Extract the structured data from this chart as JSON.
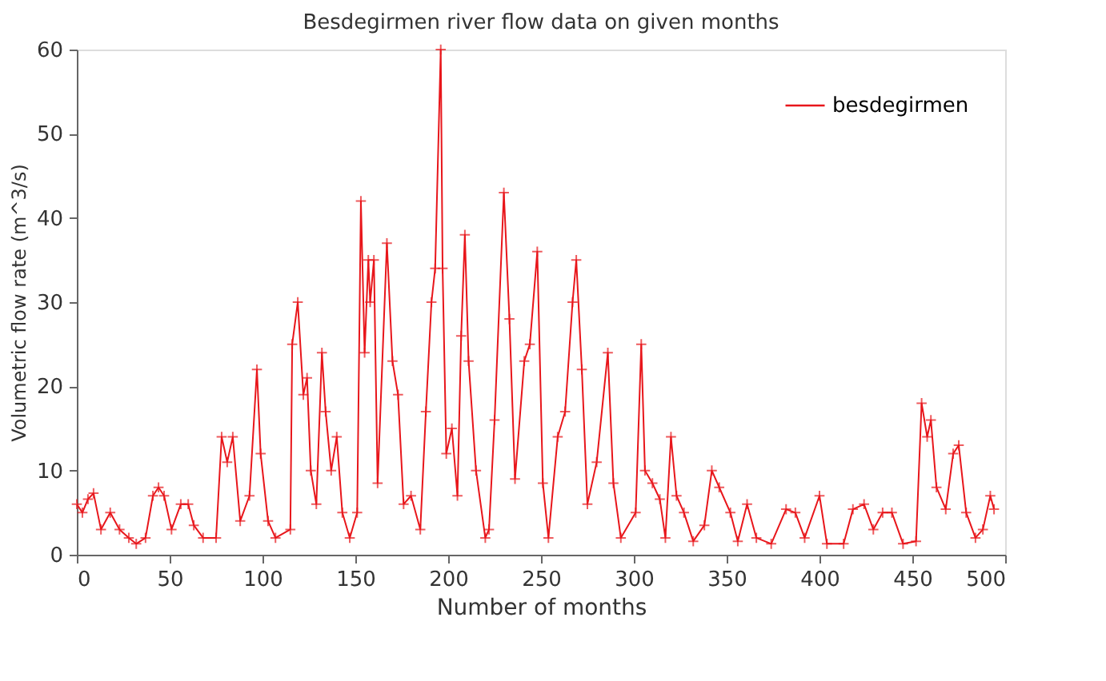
{
  "chart_data": {
    "type": "line",
    "title": "Besdegirmen river flow data on given months",
    "xlabel": "Number of months",
    "ylabel": "Volumetric flow rate (m^3/s)",
    "xlim": [
      0,
      500
    ],
    "xticks": [
      0,
      50,
      100,
      150,
      200,
      250,
      300,
      350,
      400,
      450,
      500
    ],
    "ylim": [
      0,
      60
    ],
    "yticks": [
      0,
      10,
      20,
      30,
      40,
      50,
      60
    ],
    "grid": false,
    "legend": "top right",
    "marker": "cross",
    "line_style": "solid",
    "series": [
      {
        "name": "besdegirmen",
        "color": "#e8161b",
        "x": [
          0,
          3,
          6,
          9,
          13,
          18,
          23,
          28,
          32,
          37,
          41,
          44,
          47,
          51,
          56,
          60,
          63,
          68,
          75,
          78,
          81,
          84,
          88,
          93,
          97,
          99,
          103,
          107,
          115,
          116,
          119,
          122,
          124,
          126,
          129,
          132,
          134,
          137,
          140,
          143,
          147,
          151,
          153,
          155,
          157,
          158,
          160,
          162,
          167,
          170,
          173,
          176,
          180,
          185,
          188,
          191,
          193,
          196,
          197,
          199,
          202,
          205,
          207,
          209,
          211,
          215,
          220,
          222,
          225,
          230,
          233,
          236,
          241,
          244,
          248,
          251,
          254,
          259,
          263,
          267,
          269,
          272,
          275,
          280,
          286,
          289,
          293,
          301,
          304,
          306,
          310,
          314,
          317,
          320,
          323,
          327,
          332,
          338,
          342,
          346,
          352,
          356,
          361,
          366,
          374,
          382,
          387,
          392,
          400,
          404,
          413,
          418,
          424,
          429,
          434,
          439,
          445,
          452,
          455,
          458,
          460,
          463,
          468,
          472,
          475,
          479,
          484,
          488,
          492,
          494
        ],
        "values": [
          6,
          5,
          6.6,
          7.3,
          3,
          5,
          3,
          2,
          1.3,
          2,
          7,
          8,
          7,
          3,
          6,
          6,
          3.5,
          2,
          2,
          14,
          11,
          14,
          4,
          7,
          22,
          12,
          4,
          2,
          3,
          25,
          30,
          19,
          21,
          10,
          6,
          24,
          17,
          10,
          14,
          5,
          2,
          5,
          42,
          24,
          35,
          30,
          35,
          8.5,
          37,
          23,
          19,
          6,
          7,
          3,
          17,
          30,
          34,
          60,
          34,
          12,
          15,
          7,
          26,
          38,
          23,
          10,
          2,
          3,
          16,
          43,
          28,
          9,
          23,
          25,
          36,
          8.5,
          2,
          14,
          17,
          30,
          35,
          22,
          6,
          11,
          24,
          8.5,
          2,
          5,
          25,
          10,
          8.5,
          6.6,
          2,
          14,
          7,
          5,
          1.6,
          3.5,
          10,
          8,
          5,
          1.6,
          6,
          2,
          1.3,
          5.4,
          5,
          2,
          7,
          1.3,
          1.3,
          5.4,
          6,
          3,
          5,
          5,
          1.3,
          1.6,
          18,
          14,
          16,
          8,
          5.4,
          12,
          13,
          5,
          2,
          3,
          7,
          5.4
        ]
      }
    ]
  }
}
